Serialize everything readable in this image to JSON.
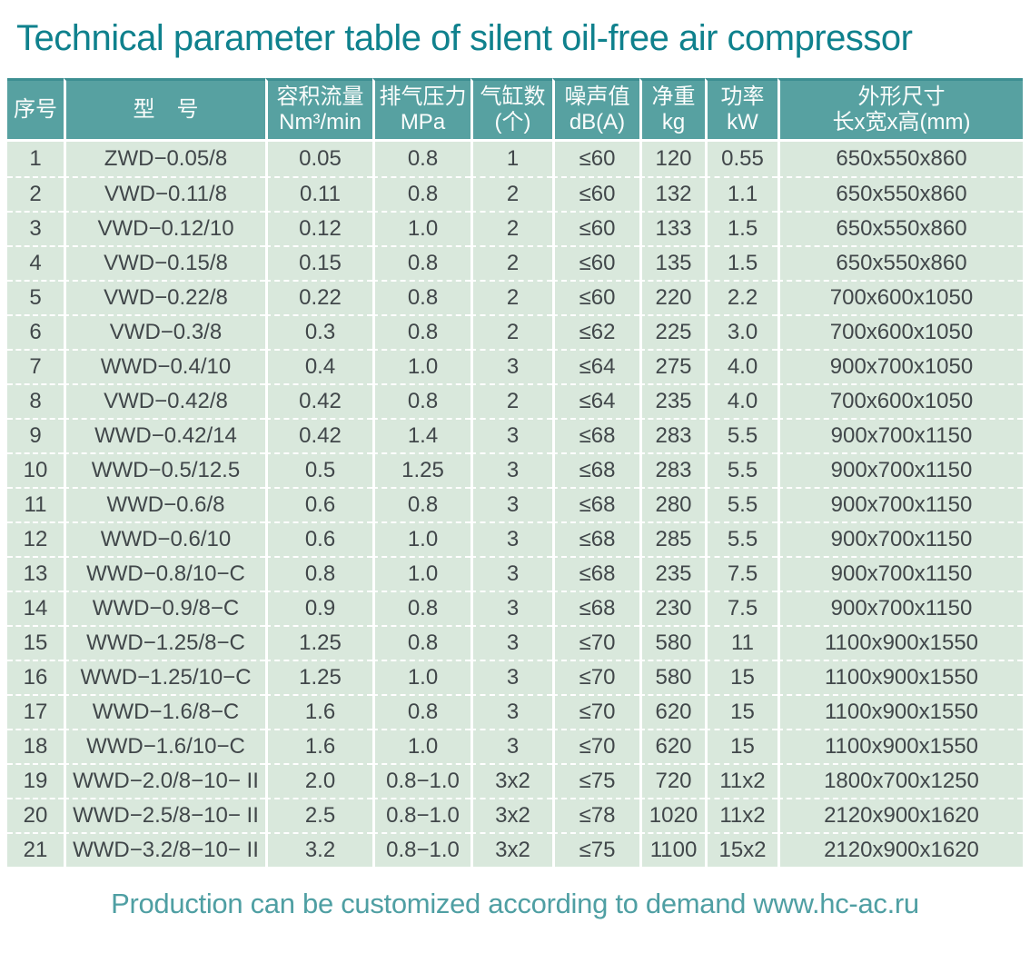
{
  "title": "Technical parameter table of silent oil-free air compressor",
  "footer": "Production can be customized according to demand www.hc-ac.ru",
  "colors": {
    "title_text": "#0f818d",
    "header_bg": "#57a1a1",
    "header_text": "#fbfdfc",
    "header_top_edge": "#3d8f92",
    "row_bg": "#d9e8dc",
    "row_text": "#41474a",
    "divider": "#ffffff",
    "footer_text": "#4f9fa3"
  },
  "table": {
    "headers": [
      {
        "line1": "序号",
        "line2": ""
      },
      {
        "line1": "型　号",
        "line2": ""
      },
      {
        "line1": "容积流量",
        "line2": "Nm³/min"
      },
      {
        "line1": "排气压力",
        "line2": "MPa"
      },
      {
        "line1": "气缸数",
        "line2": "(个)"
      },
      {
        "line1": "噪声值",
        "line2": "dB(A)"
      },
      {
        "line1": "净重",
        "line2": "kg"
      },
      {
        "line1": "功率",
        "line2": "kW"
      },
      {
        "line1": "外形尺寸",
        "line2": "长x宽x高(mm)"
      }
    ],
    "rows": [
      [
        "1",
        "ZWD−0.05/8",
        "0.05",
        "0.8",
        "1",
        "≤60",
        "120",
        "0.55",
        "650x550x860"
      ],
      [
        "2",
        "VWD−0.11/8",
        "0.11",
        "0.8",
        "2",
        "≤60",
        "132",
        "1.1",
        "650x550x860"
      ],
      [
        "3",
        "VWD−0.12/10",
        "0.12",
        "1.0",
        "2",
        "≤60",
        "133",
        "1.5",
        "650x550x860"
      ],
      [
        "4",
        "VWD−0.15/8",
        "0.15",
        "0.8",
        "2",
        "≤60",
        "135",
        "1.5",
        "650x550x860"
      ],
      [
        "5",
        "VWD−0.22/8",
        "0.22",
        "0.8",
        "2",
        "≤60",
        "220",
        "2.2",
        "700x600x1050"
      ],
      [
        "6",
        "VWD−0.3/8",
        "0.3",
        "0.8",
        "2",
        "≤62",
        "225",
        "3.0",
        "700x600x1050"
      ],
      [
        "7",
        "WWD−0.4/10",
        "0.4",
        "1.0",
        "3",
        "≤64",
        "275",
        "4.0",
        "900x700x1050"
      ],
      [
        "8",
        "VWD−0.42/8",
        "0.42",
        "0.8",
        "2",
        "≤64",
        "235",
        "4.0",
        "700x600x1050"
      ],
      [
        "9",
        "WWD−0.42/14",
        "0.42",
        "1.4",
        "3",
        "≤68",
        "283",
        "5.5",
        "900x700x1150"
      ],
      [
        "10",
        "WWD−0.5/12.5",
        "0.5",
        "1.25",
        "3",
        "≤68",
        "283",
        "5.5",
        "900x700x1150"
      ],
      [
        "11",
        "WWD−0.6/8",
        "0.6",
        "0.8",
        "3",
        "≤68",
        "280",
        "5.5",
        "900x700x1150"
      ],
      [
        "12",
        "WWD−0.6/10",
        "0.6",
        "1.0",
        "3",
        "≤68",
        "285",
        "5.5",
        "900x700x1150"
      ],
      [
        "13",
        "WWD−0.8/10−C",
        "0.8",
        "1.0",
        "3",
        "≤68",
        "235",
        "7.5",
        "900x700x1150"
      ],
      [
        "14",
        "WWD−0.9/8−C",
        "0.9",
        "0.8",
        "3",
        "≤68",
        "230",
        "7.5",
        "900x700x1150"
      ],
      [
        "15",
        "WWD−1.25/8−C",
        "1.25",
        "0.8",
        "3",
        "≤70",
        "580",
        "11",
        "1100x900x1550"
      ],
      [
        "16",
        "WWD−1.25/10−C",
        "1.25",
        "1.0",
        "3",
        "≤70",
        "580",
        "15",
        "1100x900x1550"
      ],
      [
        "17",
        "WWD−1.6/8−C",
        "1.6",
        "0.8",
        "3",
        "≤70",
        "620",
        "15",
        "1100x900x1550"
      ],
      [
        "18",
        "WWD−1.6/10−C",
        "1.6",
        "1.0",
        "3",
        "≤70",
        "620",
        "15",
        "1100x900x1550"
      ],
      [
        "19",
        "WWD−2.0/8−10− II",
        "2.0",
        "0.8−1.0",
        "3x2",
        "≤75",
        "720",
        "11x2",
        "1800x700x1250"
      ],
      [
        "20",
        "WWD−2.5/8−10− II",
        "2.5",
        "0.8−1.0",
        "3x2",
        "≤78",
        "1020",
        "11x2",
        "2120x900x1620"
      ],
      [
        "21",
        "WWD−3.2/8−10− II",
        "3.2",
        "0.8−1.0",
        "3x2",
        "≤75",
        "1100",
        "15x2",
        "2120x900x1620"
      ]
    ]
  }
}
